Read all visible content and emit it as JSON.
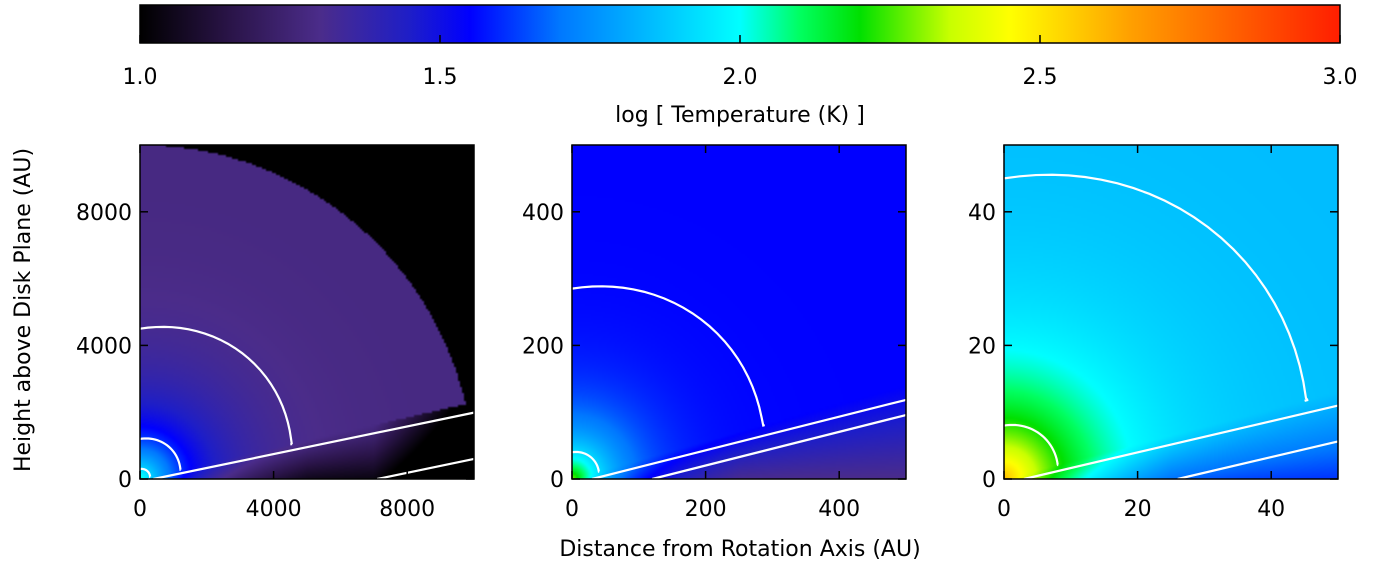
{
  "colorbar": {
    "label": "log [ Temperature (K) ]",
    "ticks": [
      "1.0",
      "1.5",
      "2.0",
      "2.5",
      "3.0"
    ],
    "tick_values": [
      1.0,
      1.5,
      2.0,
      2.5,
      3.0
    ],
    "range": [
      1.0,
      3.0
    ],
    "colormap": [
      {
        "v": 1.0,
        "color": "#000000"
      },
      {
        "v": 1.15,
        "color": "#2a1448"
      },
      {
        "v": 1.3,
        "color": "#4b2c8a"
      },
      {
        "v": 1.45,
        "color": "#1e1ec8"
      },
      {
        "v": 1.55,
        "color": "#0000ff"
      },
      {
        "v": 1.7,
        "color": "#0078ff"
      },
      {
        "v": 2.0,
        "color": "#00ffff"
      },
      {
        "v": 2.1,
        "color": "#00ff60"
      },
      {
        "v": 2.2,
        "color": "#00e000"
      },
      {
        "v": 2.35,
        "color": "#c8ff00"
      },
      {
        "v": 2.45,
        "color": "#ffff00"
      },
      {
        "v": 2.65,
        "color": "#ffa000"
      },
      {
        "v": 3.0,
        "color": "#ff1e00"
      }
    ]
  },
  "shared_axes": {
    "ylabel": "Height above Disk Plane (AU)",
    "xlabel": "Distance from Rotation Axis (AU)"
  },
  "chart_data": [
    {
      "type": "heatmap",
      "xlim": [
        0,
        10000
      ],
      "ylim": [
        0,
        10000
      ],
      "xticks": [
        0,
        4000,
        8000
      ],
      "yticks": [
        0,
        4000,
        8000
      ],
      "xtick_labels": [
        "0",
        "4000",
        "8000"
      ],
      "ytick_labels": [
        "0",
        "4000",
        "8000"
      ],
      "temperature_field": {
        "t_core": 2.05,
        "t_outer": 1.28,
        "core_scale": 1500,
        "disk_slope": 0.23,
        "outer_edge_radius": 10000,
        "outside_edge": 1.0
      },
      "contour_radii": [
        300,
        1200,
        4500
      ],
      "contour_disk_edge_x": [
        400,
        7100
      ]
    },
    {
      "type": "heatmap",
      "xlim": [
        0,
        500
      ],
      "ylim": [
        0,
        500
      ],
      "xticks": [
        0,
        200,
        400
      ],
      "yticks": [
        0,
        200,
        400
      ],
      "xtick_labels": [
        "0",
        "200",
        "400"
      ],
      "ytick_labels": [
        "0",
        "200",
        "400"
      ],
      "temperature_field": {
        "t_core": 2.3,
        "t_outer": 1.55,
        "core_scale": 60,
        "disk_slope": 0.28
      },
      "contour_radii": [
        40,
        285
      ],
      "contour_disk_edge_x": [
        30,
        120
      ]
    },
    {
      "type": "heatmap",
      "xlim": [
        0,
        50
      ],
      "ylim": [
        0,
        50
      ],
      "xticks": [
        0,
        20,
        40
      ],
      "yticks": [
        0,
        20,
        40
      ],
      "xtick_labels": [
        "0",
        "20",
        "40"
      ],
      "ytick_labels": [
        "0",
        "20",
        "40"
      ],
      "temperature_field": {
        "t_core": 2.6,
        "t_outer": 1.85,
        "core_scale": 12,
        "disk_slope": 0.26
      },
      "contour_radii": [
        8,
        45
      ],
      "contour_disk_edge_x": [
        3,
        26
      ]
    }
  ]
}
